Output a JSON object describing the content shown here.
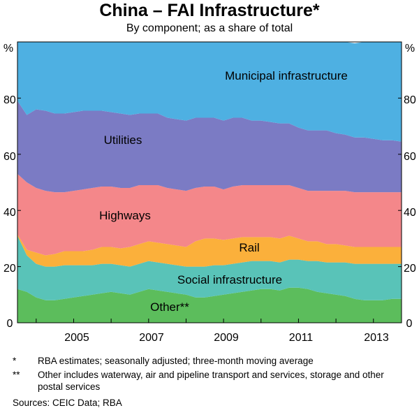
{
  "title": "China – FAI Infrastructure*",
  "subtitle": "By component; as a share of total",
  "footnotes": [
    {
      "mark": "*",
      "text": "RBA estimates; seasonally adjusted; three-month moving average"
    },
    {
      "mark": "**",
      "text": "Other includes waterway, air and pipeline transport and services, storage and other postal services"
    }
  ],
  "sources": "Sources:   CEIC Data; RBA",
  "colors": {
    "other": "#5cbd5c",
    "social": "#59c3b8",
    "rail": "#fbb03b",
    "highways": "#f4878a",
    "utilities": "#7b7bc4",
    "municipal": "#4eb0e2"
  },
  "chart_data": {
    "type": "area",
    "stacked": true,
    "xlim": [
      2003.5,
      2013.75
    ],
    "ylim": [
      0,
      100
    ],
    "yticks_left": [
      "0",
      "20",
      "40",
      "60",
      "80",
      "%"
    ],
    "yticks_right": [
      "0",
      "20",
      "40",
      "60",
      "80",
      "%"
    ],
    "xticks": [
      "2005",
      "2007",
      "2009",
      "2011",
      "2013"
    ],
    "x": [
      2003.5,
      2003.75,
      2004.0,
      2004.25,
      2004.5,
      2004.75,
      2005.0,
      2005.25,
      2005.5,
      2005.75,
      2006.0,
      2006.25,
      2006.5,
      2006.75,
      2007.0,
      2007.25,
      2007.5,
      2007.75,
      2008.0,
      2008.25,
      2008.5,
      2008.75,
      2009.0,
      2009.25,
      2009.5,
      2009.75,
      2010.0,
      2010.25,
      2010.5,
      2010.75,
      2011.0,
      2011.25,
      2011.5,
      2011.75,
      2012.0,
      2012.25,
      2012.5,
      2012.75,
      2013.0,
      2013.25,
      2013.5,
      2013.75
    ],
    "series": [
      {
        "name": "Other**",
        "color_key": "other",
        "values": [
          12,
          11,
          9,
          8,
          8,
          8.5,
          9,
          9.5,
          10,
          10.5,
          11,
          10.5,
          10,
          11,
          12,
          11.5,
          11,
          10.5,
          10,
          9,
          9,
          9.5,
          10,
          10.5,
          11,
          11.5,
          12,
          12,
          11.5,
          12.5,
          12.5,
          12,
          11,
          10.5,
          10,
          9.5,
          8.5,
          8,
          8,
          8,
          8.5,
          8.5
        ]
      },
      {
        "name": "Social infrastructure",
        "color_key": "social",
        "values": [
          19,
          13,
          12,
          12,
          12,
          12,
          11.5,
          11,
          10.5,
          10.5,
          10,
          10,
          10,
          10,
          10,
          10,
          10,
          10,
          10,
          11,
          11,
          11,
          10.5,
          10.5,
          10.5,
          10.5,
          10,
          10,
          10,
          10,
          10,
          10,
          11,
          11,
          11.5,
          12,
          12.5,
          13,
          13,
          13,
          12.5,
          12.5
        ]
      },
      {
        "name": "Rail",
        "color_key": "rail",
        "values": [
          0.5,
          2,
          4,
          4,
          4.5,
          5,
          5,
          5,
          5.5,
          6,
          6,
          6,
          7,
          7,
          7,
          7,
          7,
          7,
          7,
          9,
          10,
          9.5,
          9,
          9,
          9,
          8.5,
          8.5,
          8.5,
          8.5,
          8.5,
          7.5,
          7,
          7,
          6.5,
          6.5,
          6,
          6,
          6,
          6,
          6,
          6,
          6
        ]
      },
      {
        "name": "Highways",
        "color_key": "highways",
        "values": [
          21.5,
          24,
          23,
          23,
          22,
          21,
          21.5,
          22,
          22,
          21.5,
          21.5,
          21.5,
          21,
          21,
          20,
          20.5,
          20,
          20,
          20,
          19,
          18.5,
          18.5,
          18,
          18.5,
          18.5,
          18.5,
          18.5,
          18.5,
          19,
          18,
          18,
          18,
          18,
          19,
          19,
          19.5,
          19.5,
          19.5,
          19.5,
          19.5,
          19.5,
          19.5
        ]
      },
      {
        "name": "Utilities",
        "color_key": "utilities",
        "values": [
          26,
          24,
          28,
          28.5,
          28,
          28,
          28,
          28,
          27.5,
          27,
          26.5,
          26.5,
          26,
          25.5,
          25.5,
          25.5,
          25,
          25,
          25,
          25,
          24.5,
          24.5,
          24.5,
          24.5,
          24,
          23,
          23,
          22.5,
          22,
          22,
          21.5,
          21.5,
          21.5,
          21.5,
          20.5,
          20,
          19.5,
          19.5,
          19,
          18.5,
          18.5,
          18
        ]
      },
      {
        "name": "Municipal infrastructure",
        "color_key": "municipal",
        "values": [
          21,
          26,
          24,
          24.5,
          25.5,
          25.5,
          25,
          24.5,
          24.5,
          24.5,
          25,
          25.5,
          26,
          25.5,
          25.5,
          25.5,
          27,
          27.5,
          28,
          27,
          27,
          27,
          28,
          27,
          27,
          28,
          28,
          28.5,
          29,
          29,
          30.5,
          31.5,
          31.5,
          31.5,
          32.5,
          33,
          33.5,
          34,
          34.5,
          35,
          35,
          35.5
        ]
      }
    ],
    "series_labels": {
      "municipal": "Municipal infrastructure",
      "utilities": "Utilities",
      "highways": "Highways",
      "rail": "Rail",
      "social": "Social infrastructure",
      "other": "Other**"
    }
  }
}
